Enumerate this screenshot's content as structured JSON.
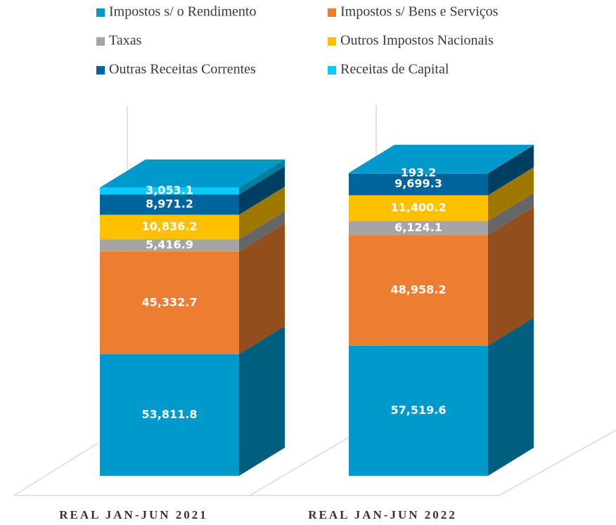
{
  "chart_data": {
    "type": "bar3d_stacked",
    "categories": [
      "REAL JAN-JUN 2021",
      "REAL JAN-JUN 2022"
    ],
    "series": [
      {
        "name": "Impostos s/ o Rendimento",
        "color": "#0099cc",
        "values": [
          53811.8,
          57519.6
        ],
        "value_labels": [
          "53,811.8",
          "57,519.6"
        ]
      },
      {
        "name": "Impostos s/ Bens e Serviços",
        "color": "#ed7d31",
        "values": [
          45332.7,
          48958.2
        ],
        "value_labels": [
          "45,332.7",
          "48,958.2"
        ]
      },
      {
        "name": "Taxas",
        "color": "#a5a5a5",
        "values": [
          5416.9,
          6124.1
        ],
        "value_labels": [
          "5,416.9",
          "6,124.1"
        ]
      },
      {
        "name": "Outros Impostos Nacionais",
        "color": "#ffc000",
        "values": [
          10836.2,
          11400.2
        ],
        "value_labels": [
          "10,836.2",
          "11,400.2"
        ]
      },
      {
        "name": "Outras Receitas Correntes",
        "color": "#00659c",
        "values": [
          8971.2,
          9699.3
        ],
        "value_labels": [
          "8,971.2",
          "9,699.3"
        ]
      },
      {
        "name": "Receitas de Capital",
        "color": "#00ccff",
        "values": [
          3053.1,
          193.2
        ],
        "value_labels": [
          "3,053.1",
          "193.2"
        ]
      }
    ]
  }
}
